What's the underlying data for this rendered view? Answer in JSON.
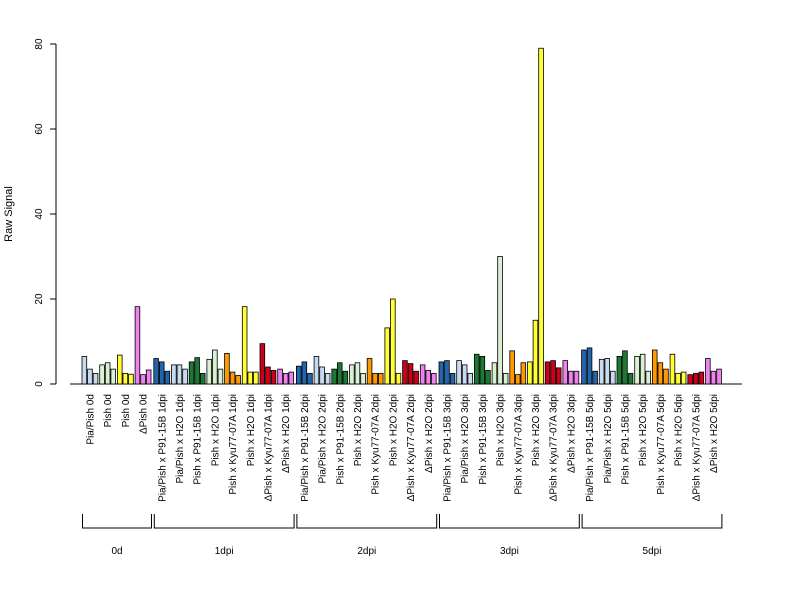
{
  "chart_data": {
    "type": "bar",
    "ylabel": "Raw Signal",
    "ylim": [
      0,
      80
    ],
    "yticks": [
      0,
      20,
      40,
      60,
      80
    ],
    "grid": false,
    "legend": "none",
    "colors": {
      "Pia/Pish": "#c6dbef",
      "Pia/Pish x P91-15B": "#2166ac",
      "Pia/Pish x H2O": "#c6dbef",
      "Pish": "#ffff33",
      "ΔPish": "#ee82ee",
      "Pish x P91-15B": "#1a7a34",
      "Pish x H2O": "#d9f0d3",
      "Pish x Kyu77-07A": "#ff9900",
      "Pish x H2O (yellow)": "#ffff33",
      "ΔPish x Kyu77-07A": "#cc0018",
      "ΔPish x H2O": "#ee82ee",
      "Pish (light)": "#d9f0d3"
    },
    "groups": [
      {
        "label": "0d",
        "categories": [
          {
            "label": "Pia/Pish 0d",
            "color": "#c6dbef",
            "values": [
              6.5,
              3.5,
              2.5
            ]
          },
          {
            "label": "Pish 0d",
            "color": "#d9f0d3",
            "values": [
              4.5,
              5.0,
              3.5
            ]
          },
          {
            "label": "Pish 0d",
            "color": "#ffff33",
            "values": [
              6.8,
              2.5,
              2.3
            ]
          },
          {
            "label": "ΔPish 0d",
            "color": "#ee82ee",
            "values": [
              18.2,
              2.2,
              3.3
            ]
          }
        ]
      },
      {
        "label": "1dpi",
        "categories": [
          {
            "label": "Pia/Pish x P91-15B 1dpi",
            "color": "#2166ac",
            "values": [
              6.0,
              5.2,
              3.0
            ]
          },
          {
            "label": "Pia/Pish x H2O 1dpi",
            "color": "#c6dbef",
            "values": [
              4.5,
              4.5,
              3.5
            ]
          },
          {
            "label": "Pish x P91-15B 1dpi",
            "color": "#1a7a34",
            "values": [
              5.2,
              6.2,
              2.5
            ]
          },
          {
            "label": "Pish x H2O 1dpi",
            "color": "#d9f0d3",
            "values": [
              5.8,
              8.0,
              3.5
            ]
          },
          {
            "label": "Pish x Kyu77-07A 1dpi",
            "color": "#ff9900",
            "values": [
              7.2,
              2.8,
              2.0
            ]
          },
          {
            "label": "Pish x H2O 1dpi",
            "color": "#ffff33",
            "values": [
              18.2,
              2.8,
              2.8
            ]
          },
          {
            "label": "ΔPish x Kyu77-07A 1dpi",
            "color": "#cc0018",
            "values": [
              9.5,
              4.0,
              3.2
            ]
          },
          {
            "label": "ΔPish x H2O 1dpi",
            "color": "#ee82ee",
            "values": [
              3.5,
              2.5,
              2.8
            ]
          }
        ]
      },
      {
        "label": "2dpi",
        "categories": [
          {
            "label": "Pia/Pish x P91-15B 2dpi",
            "color": "#2166ac",
            "values": [
              4.2,
              5.2,
              2.5
            ]
          },
          {
            "label": "Pia/Pish x H2O 2dpi",
            "color": "#c6dbef",
            "values": [
              6.5,
              4.0,
              2.5
            ]
          },
          {
            "label": "Pish x P91-15B 2dpi",
            "color": "#1a7a34",
            "values": [
              3.5,
              5.0,
              3.0
            ]
          },
          {
            "label": "Pish x H2O 2dpi",
            "color": "#d9f0d3",
            "values": [
              4.5,
              5.0,
              2.5
            ]
          },
          {
            "label": "Pish x Kyu77-07A 2dpi",
            "color": "#ff9900",
            "values": [
              6.0,
              2.5,
              2.5
            ]
          },
          {
            "label": "Pish x H2O 2dpi",
            "color": "#ffff33",
            "values": [
              13.2,
              20.0,
              2.5
            ]
          },
          {
            "label": "ΔPish x Kyu77-07A 2dpi",
            "color": "#cc0018",
            "values": [
              5.5,
              4.8,
              3.0
            ]
          },
          {
            "label": "ΔPish x H2O 2dpi",
            "color": "#ee82ee",
            "values": [
              4.5,
              3.2,
              2.5
            ]
          }
        ]
      },
      {
        "label": "3dpi",
        "categories": [
          {
            "label": "Pia/Pish x P91-15B 3dpi",
            "color": "#2166ac",
            "values": [
              5.2,
              5.5,
              2.5
            ]
          },
          {
            "label": "Pia/Pish x H2O 3dpi",
            "color": "#c6dbef",
            "values": [
              5.5,
              4.5,
              2.5
            ]
          },
          {
            "label": "Pish x P91-15B 3dpi",
            "color": "#1a7a34",
            "values": [
              7.0,
              6.5,
              3.2
            ]
          },
          {
            "label": "Pish x H2O 3dpi",
            "color": "#d9f0d3",
            "values": [
              5.0,
              30.0,
              2.5
            ]
          },
          {
            "label": "Pish x Kyu77-07A 3dpi",
            "color": "#ff9900",
            "values": [
              7.8,
              2.2,
              5.0
            ]
          },
          {
            "label": "Pish x H2O 3dpi",
            "color": "#ffff33",
            "values": [
              5.2,
              15.0,
              79.0
            ]
          },
          {
            "label": "ΔPish x Kyu77-07A 3dpi",
            "color": "#cc0018",
            "values": [
              5.2,
              5.5,
              3.8
            ]
          },
          {
            "label": "ΔPish x H2O 3dpi",
            "color": "#ee82ee",
            "values": [
              5.5,
              3.0,
              3.0
            ]
          }
        ]
      },
      {
        "label": "5dpi",
        "categories": [
          {
            "label": "Pia/Pish x P91-15B 5dpi",
            "color": "#2166ac",
            "values": [
              8.0,
              8.5,
              3.0
            ]
          },
          {
            "label": "Pia/Pish x H2O 5dpi",
            "color": "#c6dbef",
            "values": [
              5.8,
              6.0,
              3.0
            ]
          },
          {
            "label": "Pish x P91-15B 5dpi",
            "color": "#1a7a34",
            "values": [
              6.5,
              7.8,
              2.5
            ]
          },
          {
            "label": "Pish x H2O 5dpi",
            "color": "#d9f0d3",
            "values": [
              6.5,
              7.0,
              3.0
            ]
          },
          {
            "label": "Pish x Kyu77-07A 5dpi",
            "color": "#ff9900",
            "values": [
              8.0,
              5.0,
              3.5
            ]
          },
          {
            "label": "Pish x H2O 5dpi",
            "color": "#ffff33",
            "values": [
              7.0,
              2.5,
              2.8
            ]
          },
          {
            "label": "ΔPish x Kyu77-07A 5dpi",
            "color": "#cc0018",
            "values": [
              2.2,
              2.5,
              2.8
            ]
          },
          {
            "label": "ΔPish x H2O 5dpi",
            "color": "#ee82ee",
            "values": [
              6.0,
              3.0,
              3.5
            ]
          }
        ]
      }
    ]
  }
}
